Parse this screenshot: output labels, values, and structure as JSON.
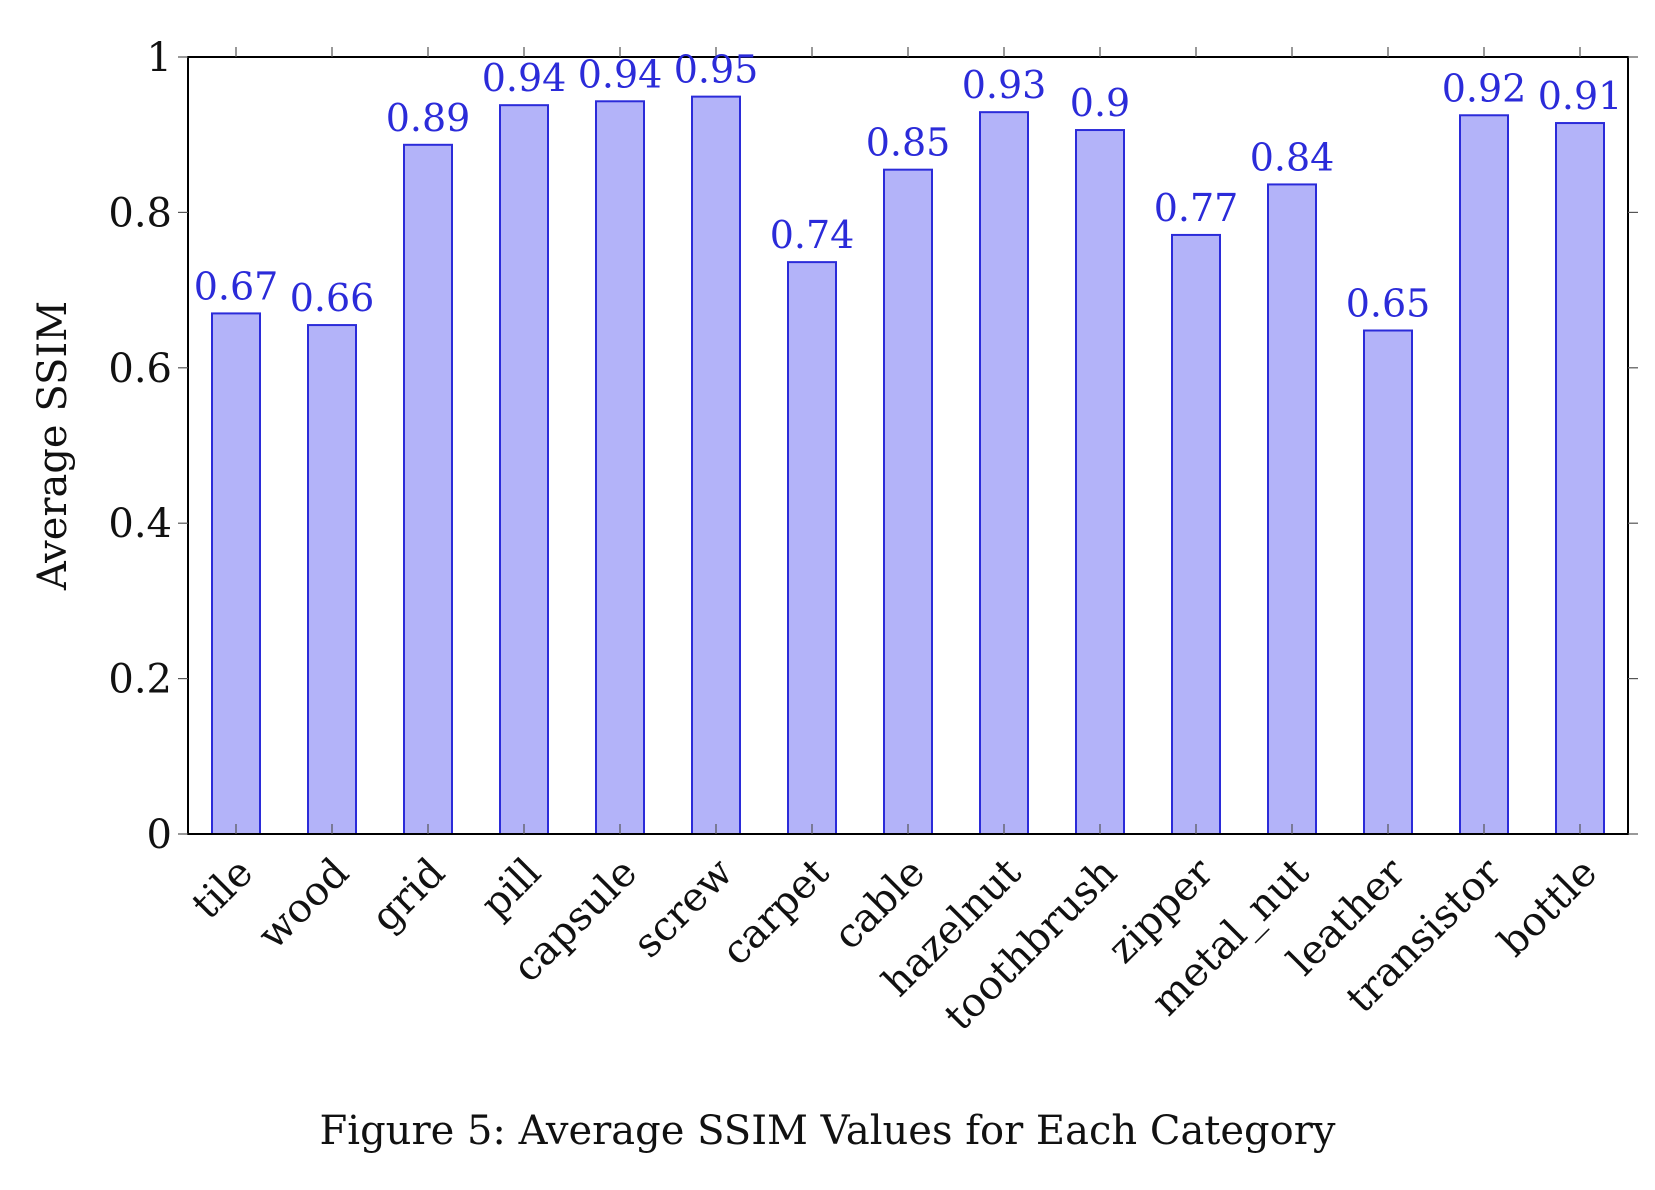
{
  "caption": "Figure 5: Average SSIM Values for Each Category",
  "chart_data": {
    "type": "bar",
    "title": "",
    "xlabel": "",
    "ylabel": "Average SSIM",
    "ylim": [
      0,
      1
    ],
    "yticks": [
      0,
      0.2,
      0.4,
      0.6,
      0.8,
      1
    ],
    "ytick_labels": [
      "0",
      "0.2",
      "0.4",
      "0.6",
      "0.8",
      "1"
    ],
    "categories": [
      "tile",
      "wood",
      "grid",
      "pill",
      "capsule",
      "screw",
      "carpet",
      "cable",
      "hazelnut",
      "toothbrush",
      "zipper",
      "metal_nut",
      "leather",
      "transistor",
      "bottle"
    ],
    "values": [
      0.67,
      0.655,
      0.887,
      0.938,
      0.943,
      0.949,
      0.736,
      0.855,
      0.929,
      0.906,
      0.771,
      0.836,
      0.648,
      0.925,
      0.915
    ],
    "data_labels": [
      "0.67",
      "0.66",
      "0.89",
      "0.94",
      "0.94",
      "0.95",
      "0.74",
      "0.85",
      "0.93",
      "0.9",
      "0.77",
      "0.84",
      "0.65",
      "0.92",
      "0.91"
    ],
    "grid": false,
    "colors": {
      "bar_fill": "#b3b3f9",
      "bar_stroke": "#2b2bd9",
      "label": "#2b2bd9",
      "axis": "#000000"
    }
  }
}
